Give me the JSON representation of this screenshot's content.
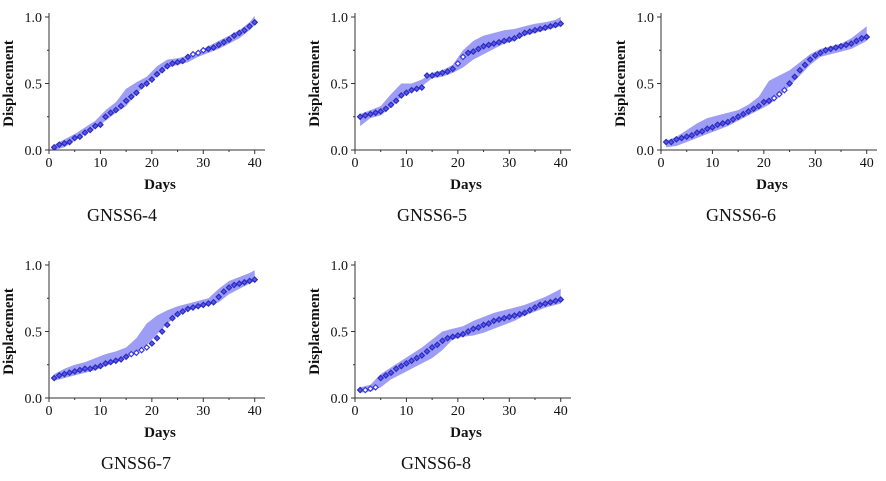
{
  "chart_data": [
    {
      "type": "line",
      "title": "GNSS6-4",
      "xlabel": "Days",
      "ylabel": "Displacement",
      "xlim": [
        0,
        42
      ],
      "ylim": [
        0,
        1.0
      ],
      "xticks": [
        0,
        10,
        20,
        30,
        40
      ],
      "yticks": [
        0.0,
        0.5,
        1.0
      ],
      "ytick_labels": [
        "0.0",
        "0.5",
        "1.0"
      ],
      "series": [
        {
          "name": "Prediction interval",
          "x": [
            1,
            3,
            5,
            7,
            9,
            11,
            13,
            15,
            17,
            19,
            21,
            23,
            25,
            27,
            29,
            31,
            33,
            35,
            37,
            39,
            40
          ],
          "lower": [
            0.0,
            0.02,
            0.07,
            0.12,
            0.16,
            0.22,
            0.28,
            0.33,
            0.42,
            0.5,
            0.55,
            0.62,
            0.64,
            0.66,
            0.7,
            0.73,
            0.76,
            0.8,
            0.84,
            0.9,
            0.94
          ],
          "upper": [
            0.04,
            0.08,
            0.12,
            0.17,
            0.22,
            0.3,
            0.36,
            0.46,
            0.51,
            0.55,
            0.63,
            0.68,
            0.69,
            0.71,
            0.74,
            0.78,
            0.82,
            0.86,
            0.9,
            0.96,
            1.01
          ]
        },
        {
          "name": "Displacement",
          "values": [
            0.02,
            0.04,
            0.05,
            0.06,
            0.09,
            0.1,
            0.13,
            0.15,
            0.18,
            0.19,
            0.25,
            0.28,
            0.3,
            0.33,
            0.37,
            0.4,
            0.43,
            0.48,
            0.5,
            0.53,
            0.57,
            0.6,
            0.63,
            0.65,
            0.66,
            0.67,
            0.7,
            0.72,
            0.73,
            0.75,
            0.76,
            0.77,
            0.79,
            0.81,
            0.83,
            0.86,
            0.88,
            0.9,
            0.93,
            0.96
          ]
        }
      ]
    },
    {
      "type": "line",
      "title": "GNSS6-5",
      "xlabel": "Days",
      "ylabel": "Displacement",
      "xlim": [
        0,
        42
      ],
      "ylim": [
        0,
        1.0
      ],
      "xticks": [
        0,
        10,
        20,
        30,
        40
      ],
      "yticks": [
        0.0,
        0.5,
        1.0
      ],
      "ytick_labels": [
        "0.0",
        "0.5",
        "1.0"
      ],
      "series": [
        {
          "name": "Prediction interval",
          "x": [
            1,
            3,
            5,
            7,
            9,
            11,
            13,
            15,
            17,
            19,
            21,
            23,
            25,
            27,
            29,
            31,
            33,
            35,
            37,
            39,
            40
          ],
          "lower": [
            0.18,
            0.24,
            0.26,
            0.32,
            0.4,
            0.44,
            0.48,
            0.54,
            0.55,
            0.58,
            0.62,
            0.68,
            0.72,
            0.76,
            0.8,
            0.82,
            0.86,
            0.88,
            0.9,
            0.92,
            0.93
          ],
          "upper": [
            0.27,
            0.3,
            0.33,
            0.42,
            0.5,
            0.5,
            0.53,
            0.58,
            0.6,
            0.64,
            0.75,
            0.82,
            0.86,
            0.88,
            0.9,
            0.91,
            0.93,
            0.95,
            0.96,
            0.98,
            1.0
          ]
        },
        {
          "name": "Displacement",
          "values": [
            0.25,
            0.26,
            0.27,
            0.28,
            0.29,
            0.31,
            0.34,
            0.37,
            0.41,
            0.43,
            0.45,
            0.46,
            0.47,
            0.56,
            0.56,
            0.57,
            0.58,
            0.59,
            0.61,
            0.65,
            0.7,
            0.73,
            0.74,
            0.76,
            0.78,
            0.79,
            0.8,
            0.81,
            0.82,
            0.83,
            0.84,
            0.86,
            0.88,
            0.89,
            0.9,
            0.91,
            0.92,
            0.93,
            0.94,
            0.95
          ]
        }
      ]
    },
    {
      "type": "line",
      "title": "GNSS6-6",
      "xlabel": "Days",
      "ylabel": "Displacement",
      "xlim": [
        0,
        42
      ],
      "ylim": [
        0,
        1.0
      ],
      "xticks": [
        0,
        10,
        20,
        30,
        40
      ],
      "yticks": [
        0.0,
        0.5,
        1.0
      ],
      "ytick_labels": [
        "0.0",
        "0.5",
        "1.0"
      ],
      "series": [
        {
          "name": "Prediction interval",
          "x": [
            1,
            3,
            5,
            7,
            9,
            11,
            13,
            15,
            17,
            19,
            21,
            23,
            25,
            27,
            29,
            31,
            33,
            35,
            37,
            39,
            40
          ],
          "lower": [
            0.02,
            0.03,
            0.06,
            0.09,
            0.12,
            0.15,
            0.18,
            0.22,
            0.26,
            0.3,
            0.34,
            0.4,
            0.48,
            0.56,
            0.64,
            0.7,
            0.72,
            0.74,
            0.76,
            0.8,
            0.82
          ],
          "upper": [
            0.07,
            0.1,
            0.15,
            0.2,
            0.24,
            0.26,
            0.28,
            0.3,
            0.34,
            0.4,
            0.52,
            0.56,
            0.6,
            0.66,
            0.72,
            0.76,
            0.78,
            0.8,
            0.84,
            0.9,
            0.93
          ]
        },
        {
          "name": "Displacement",
          "values": [
            0.06,
            0.06,
            0.08,
            0.09,
            0.1,
            0.11,
            0.13,
            0.14,
            0.16,
            0.17,
            0.19,
            0.2,
            0.21,
            0.23,
            0.25,
            0.27,
            0.29,
            0.31,
            0.33,
            0.36,
            0.37,
            0.39,
            0.42,
            0.45,
            0.5,
            0.55,
            0.6,
            0.64,
            0.68,
            0.71,
            0.73,
            0.75,
            0.76,
            0.77,
            0.78,
            0.79,
            0.8,
            0.82,
            0.84,
            0.85
          ]
        }
      ]
    },
    {
      "type": "line",
      "title": "GNSS6-7",
      "xlabel": "Days",
      "ylabel": "Displacement",
      "xlim": [
        0,
        42
      ],
      "ylim": [
        0,
        1.0
      ],
      "xticks": [
        0,
        10,
        20,
        30,
        40
      ],
      "yticks": [
        0.0,
        0.5,
        1.0
      ],
      "ytick_labels": [
        "0.0",
        "0.5",
        "1.0"
      ],
      "series": [
        {
          "name": "Prediction interval",
          "x": [
            1,
            3,
            5,
            7,
            9,
            11,
            13,
            15,
            17,
            19,
            21,
            23,
            25,
            27,
            29,
            31,
            33,
            35,
            37,
            39,
            40
          ],
          "lower": [
            0.13,
            0.15,
            0.17,
            0.19,
            0.21,
            0.24,
            0.27,
            0.3,
            0.34,
            0.4,
            0.48,
            0.56,
            0.62,
            0.66,
            0.68,
            0.7,
            0.72,
            0.78,
            0.82,
            0.86,
            0.88
          ],
          "upper": [
            0.18,
            0.22,
            0.25,
            0.27,
            0.3,
            0.33,
            0.35,
            0.38,
            0.45,
            0.56,
            0.62,
            0.66,
            0.69,
            0.71,
            0.73,
            0.75,
            0.82,
            0.88,
            0.91,
            0.94,
            0.96
          ]
        },
        {
          "name": "Displacement",
          "values": [
            0.15,
            0.17,
            0.18,
            0.19,
            0.2,
            0.21,
            0.22,
            0.22,
            0.23,
            0.24,
            0.26,
            0.27,
            0.28,
            0.29,
            0.31,
            0.33,
            0.34,
            0.36,
            0.38,
            0.41,
            0.45,
            0.5,
            0.55,
            0.6,
            0.63,
            0.65,
            0.67,
            0.68,
            0.69,
            0.7,
            0.71,
            0.72,
            0.76,
            0.8,
            0.83,
            0.85,
            0.86,
            0.87,
            0.88,
            0.89
          ]
        }
      ]
    },
    {
      "type": "line",
      "title": "GNSS6-8",
      "xlabel": "Days",
      "ylabel": "Displacement",
      "xlim": [
        0,
        42
      ],
      "ylim": [
        0,
        1.0
      ],
      "xticks": [
        0,
        10,
        20,
        30,
        40
      ],
      "yticks": [
        0.0,
        0.5,
        1.0
      ],
      "ytick_labels": [
        "0.0",
        "0.5",
        "1.0"
      ],
      "series": [
        {
          "name": "Prediction interval",
          "x": [
            1,
            3,
            5,
            7,
            9,
            11,
            13,
            15,
            17,
            19,
            21,
            23,
            25,
            27,
            29,
            31,
            33,
            35,
            37,
            39,
            40
          ],
          "lower": [
            0.04,
            0.05,
            0.08,
            0.14,
            0.18,
            0.22,
            0.26,
            0.3,
            0.36,
            0.44,
            0.46,
            0.47,
            0.49,
            0.52,
            0.55,
            0.58,
            0.62,
            0.65,
            0.68,
            0.7,
            0.71
          ],
          "upper": [
            0.08,
            0.1,
            0.18,
            0.23,
            0.28,
            0.33,
            0.38,
            0.44,
            0.5,
            0.52,
            0.54,
            0.58,
            0.61,
            0.64,
            0.66,
            0.68,
            0.7,
            0.73,
            0.76,
            0.8,
            0.82
          ]
        },
        {
          "name": "Displacement",
          "values": [
            0.06,
            0.06,
            0.07,
            0.08,
            0.15,
            0.17,
            0.19,
            0.22,
            0.24,
            0.26,
            0.28,
            0.3,
            0.32,
            0.35,
            0.38,
            0.4,
            0.43,
            0.45,
            0.46,
            0.47,
            0.48,
            0.5,
            0.52,
            0.53,
            0.55,
            0.56,
            0.58,
            0.59,
            0.6,
            0.61,
            0.62,
            0.63,
            0.64,
            0.66,
            0.68,
            0.7,
            0.71,
            0.72,
            0.73,
            0.74
          ]
        }
      ]
    }
  ],
  "colors": {
    "band": "#7c7cf2",
    "marker_stroke": "#3a3ad8",
    "marker_fill_observed": "#5a5ae6",
    "marker_fill_open": "#ffffff",
    "axis": "#333333",
    "text": "#111111"
  }
}
